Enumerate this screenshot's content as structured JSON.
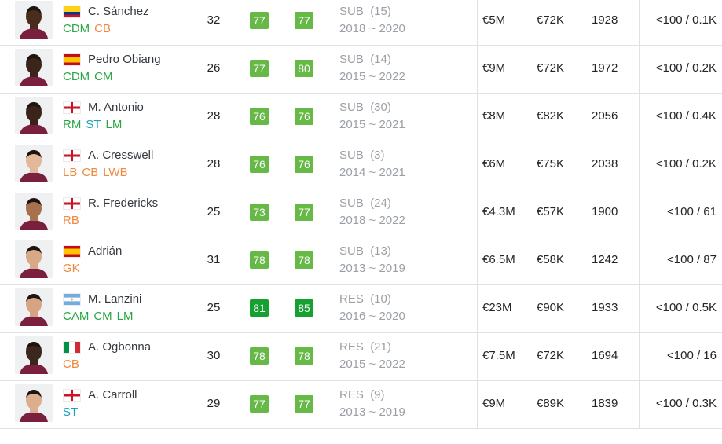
{
  "players": [
    {
      "name": "C. Sánchez",
      "flag": "colombia",
      "positions": [
        {
          "label": "CDM",
          "type": "mid"
        },
        {
          "label": "CB",
          "type": "def"
        }
      ],
      "age": "32",
      "overall": "77",
      "potential": "77",
      "overall_tier": "mid",
      "potential_tier": "mid",
      "role": "SUB",
      "kit": "(15)",
      "contract": "2018 ~ 2020",
      "value": "€5M",
      "wage": "€72K",
      "total": "1928",
      "stat": "<100 / 0.1K",
      "skin": "#4a2c1d"
    },
    {
      "name": "Pedro Obiang",
      "flag": "spain",
      "positions": [
        {
          "label": "CDM",
          "type": "mid"
        },
        {
          "label": "CM",
          "type": "mid"
        }
      ],
      "age": "26",
      "overall": "77",
      "potential": "80",
      "overall_tier": "mid",
      "potential_tier": "mid",
      "role": "SUB",
      "kit": "(14)",
      "contract": "2015 ~ 2022",
      "value": "€9M",
      "wage": "€72K",
      "total": "1972",
      "stat": "<100 / 0.2K",
      "skin": "#3b2418"
    },
    {
      "name": "M. Antonio",
      "flag": "england",
      "positions": [
        {
          "label": "RM",
          "type": "mid"
        },
        {
          "label": "ST",
          "type": "fwd"
        },
        {
          "label": "LM",
          "type": "mid"
        }
      ],
      "age": "28",
      "overall": "76",
      "potential": "76",
      "overall_tier": "mid",
      "potential_tier": "mid",
      "role": "SUB",
      "kit": "(30)",
      "contract": "2015 ~ 2021",
      "value": "€8M",
      "wage": "€82K",
      "total": "2056",
      "stat": "<100 / 0.4K",
      "skin": "#3a2419"
    },
    {
      "name": "A. Cresswell",
      "flag": "england",
      "positions": [
        {
          "label": "LB",
          "type": "def"
        },
        {
          "label": "CB",
          "type": "def"
        },
        {
          "label": "LWB",
          "type": "def"
        }
      ],
      "age": "28",
      "overall": "76",
      "potential": "76",
      "overall_tier": "mid",
      "potential_tier": "mid",
      "role": "SUB",
      "kit": "(3)",
      "contract": "2014 ~ 2021",
      "value": "€6M",
      "wage": "€75K",
      "total": "2038",
      "stat": "<100 / 0.2K",
      "skin": "#e2b79a"
    },
    {
      "name": "R. Fredericks",
      "flag": "england",
      "positions": [
        {
          "label": "RB",
          "type": "def"
        }
      ],
      "age": "25",
      "overall": "73",
      "potential": "77",
      "overall_tier": "mid",
      "potential_tier": "mid",
      "role": "SUB",
      "kit": "(24)",
      "contract": "2018 ~ 2022",
      "value": "€4.3M",
      "wage": "€57K",
      "total": "1900",
      "stat": "<100 / 61",
      "skin": "#a7714e"
    },
    {
      "name": "Adrián",
      "flag": "spain",
      "positions": [
        {
          "label": "GK",
          "type": "gk"
        }
      ],
      "age": "31",
      "overall": "78",
      "potential": "78",
      "overall_tier": "mid",
      "potential_tier": "mid",
      "role": "SUB",
      "kit": "(13)",
      "contract": "2013 ~ 2019",
      "value": "€6.5M",
      "wage": "€58K",
      "total": "1242",
      "stat": "<100 / 87",
      "skin": "#d9a887"
    },
    {
      "name": "M. Lanzini",
      "flag": "argentina",
      "positions": [
        {
          "label": "CAM",
          "type": "mid"
        },
        {
          "label": "CM",
          "type": "mid"
        },
        {
          "label": "LM",
          "type": "mid"
        }
      ],
      "age": "25",
      "overall": "81",
      "potential": "85",
      "overall_tier": "high",
      "potential_tier": "high",
      "role": "RES",
      "kit": "(10)",
      "contract": "2016 ~ 2020",
      "value": "€23M",
      "wage": "€90K",
      "total": "1933",
      "stat": "<100 / 0.5K",
      "skin": "#d7a483"
    },
    {
      "name": "A. Ogbonna",
      "flag": "italy",
      "positions": [
        {
          "label": "CB",
          "type": "def"
        }
      ],
      "age": "30",
      "overall": "78",
      "potential": "78",
      "overall_tier": "mid",
      "potential_tier": "mid",
      "role": "RES",
      "kit": "(21)",
      "contract": "2015 ~ 2022",
      "value": "€7.5M",
      "wage": "€72K",
      "total": "1694",
      "stat": "<100 / 16",
      "skin": "#3c271c"
    },
    {
      "name": "A. Carroll",
      "flag": "england",
      "positions": [
        {
          "label": "ST",
          "type": "fwd"
        }
      ],
      "age": "29",
      "overall": "77",
      "potential": "77",
      "overall_tier": "mid",
      "potential_tier": "mid",
      "role": "RES",
      "kit": "(9)",
      "contract": "2013 ~ 2019",
      "value": "€9M",
      "wage": "€89K",
      "total": "1839",
      "stat": "<100 / 0.3K",
      "skin": "#dcae8d"
    }
  ]
}
